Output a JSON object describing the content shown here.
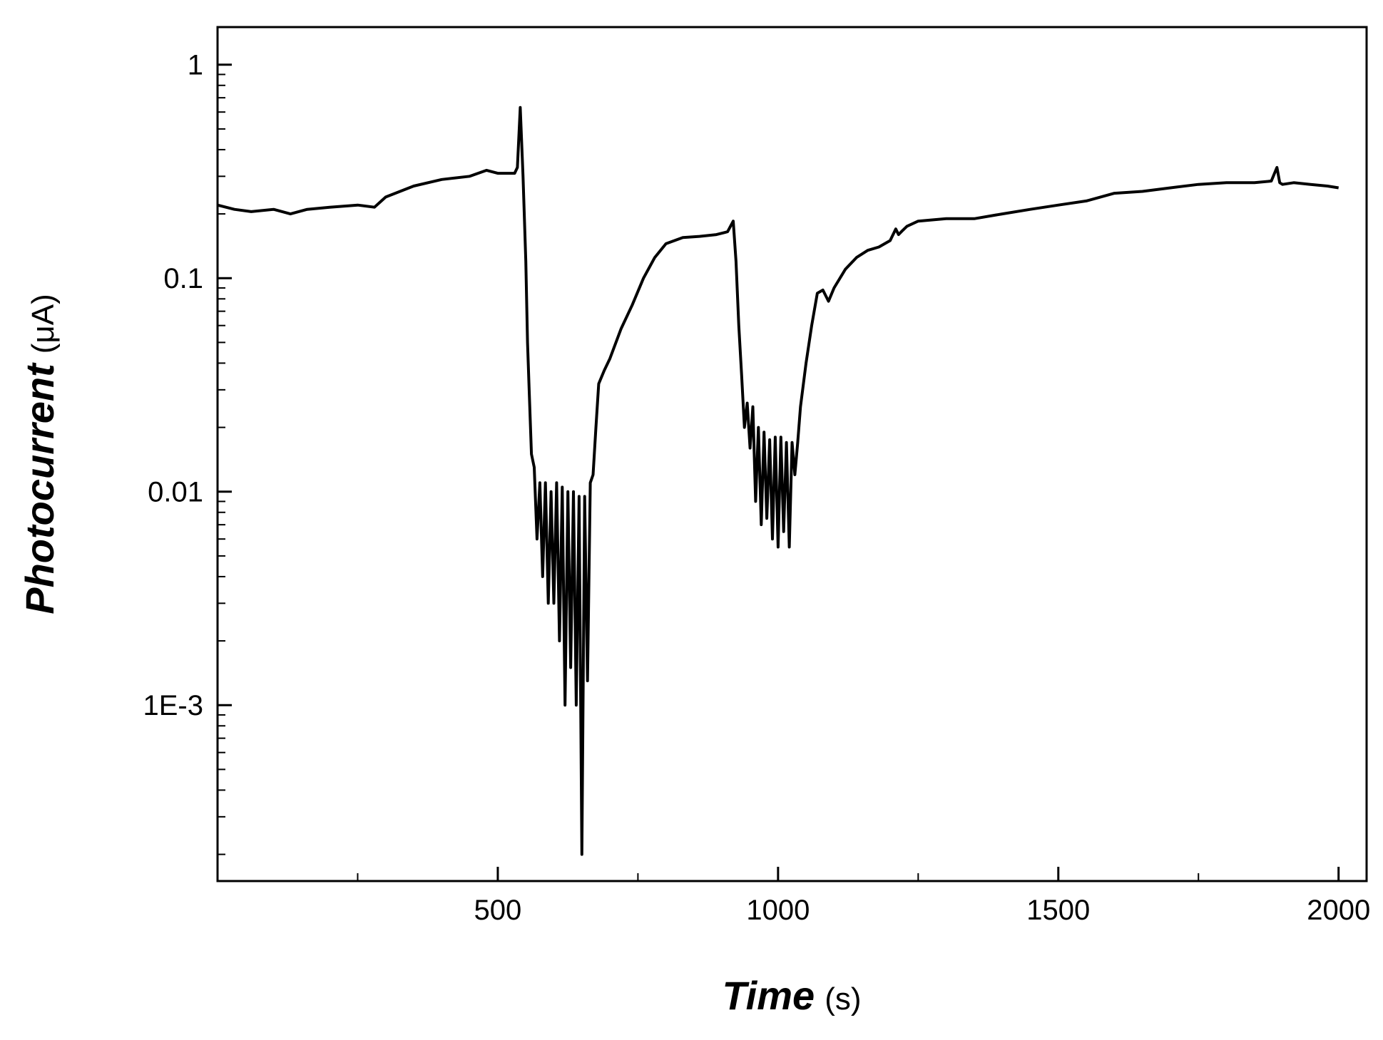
{
  "chart_data": {
    "type": "line",
    "title": "",
    "xlabel": {
      "main": "Time",
      "unit": "(s)"
    },
    "ylabel": {
      "main": "Photocurrent",
      "unit": "(μA)"
    },
    "xlim": [
      0,
      2050
    ],
    "ylim": [
      0.00015,
      1.5
    ],
    "yscale": "log",
    "grid": false,
    "legend": "none",
    "x_ticks": [
      {
        "value": 500,
        "label": "500"
      },
      {
        "value": 1000,
        "label": "1000"
      },
      {
        "value": 1500,
        "label": "1500"
      },
      {
        "value": 2000,
        "label": "2000"
      }
    ],
    "y_ticks": [
      {
        "value": 1,
        "label": "1"
      },
      {
        "value": 0.1,
        "label": "0.1"
      },
      {
        "value": 0.01,
        "label": "0.01"
      },
      {
        "value": 0.001,
        "label": "1E-3"
      }
    ],
    "series": [
      {
        "color": "#000000",
        "x": [
          0,
          30,
          60,
          100,
          130,
          160,
          200,
          250,
          280,
          300,
          350,
          400,
          450,
          480,
          500,
          520,
          530,
          535,
          540,
          545,
          550,
          553,
          556,
          560,
          565,
          570,
          575,
          580,
          585,
          590,
          595,
          600,
          605,
          610,
          615,
          620,
          625,
          630,
          635,
          640,
          645,
          650,
          655,
          660,
          665,
          670,
          675,
          680,
          690,
          700,
          720,
          740,
          760,
          780,
          800,
          830,
          860,
          890,
          910,
          920,
          925,
          930,
          935,
          940,
          945,
          950,
          955,
          960,
          965,
          970,
          975,
          980,
          985,
          990,
          995,
          1000,
          1005,
          1010,
          1015,
          1020,
          1025,
          1030,
          1035,
          1040,
          1050,
          1060,
          1070,
          1080,
          1090,
          1100,
          1120,
          1140,
          1160,
          1180,
          1200,
          1210,
          1215,
          1220,
          1230,
          1250,
          1300,
          1350,
          1400,
          1450,
          1500,
          1550,
          1600,
          1650,
          1700,
          1750,
          1800,
          1850,
          1880,
          1890,
          1895,
          1900,
          1920,
          1950,
          1980,
          2000
        ],
        "y": [
          0.22,
          0.21,
          0.205,
          0.21,
          0.2,
          0.21,
          0.215,
          0.22,
          0.215,
          0.24,
          0.27,
          0.29,
          0.3,
          0.32,
          0.31,
          0.31,
          0.31,
          0.33,
          0.63,
          0.3,
          0.12,
          0.05,
          0.03,
          0.015,
          0.013,
          0.006,
          0.011,
          0.004,
          0.011,
          0.003,
          0.01,
          0.003,
          0.011,
          0.002,
          0.0105,
          0.001,
          0.01,
          0.0015,
          0.01,
          0.001,
          0.0095,
          0.0002,
          0.0095,
          0.0013,
          0.011,
          0.012,
          0.02,
          0.032,
          0.037,
          0.042,
          0.058,
          0.075,
          0.1,
          0.125,
          0.145,
          0.155,
          0.157,
          0.16,
          0.165,
          0.185,
          0.12,
          0.06,
          0.035,
          0.02,
          0.026,
          0.016,
          0.025,
          0.009,
          0.02,
          0.007,
          0.019,
          0.0075,
          0.0175,
          0.006,
          0.018,
          0.0055,
          0.018,
          0.0065,
          0.017,
          0.0055,
          0.017,
          0.012,
          0.017,
          0.025,
          0.04,
          0.06,
          0.085,
          0.088,
          0.078,
          0.09,
          0.11,
          0.125,
          0.135,
          0.14,
          0.15,
          0.17,
          0.16,
          0.165,
          0.175,
          0.185,
          0.19,
          0.19,
          0.2,
          0.21,
          0.22,
          0.23,
          0.25,
          0.255,
          0.265,
          0.275,
          0.28,
          0.28,
          0.285,
          0.33,
          0.28,
          0.275,
          0.28,
          0.275,
          0.27,
          0.265
        ]
      }
    ]
  }
}
